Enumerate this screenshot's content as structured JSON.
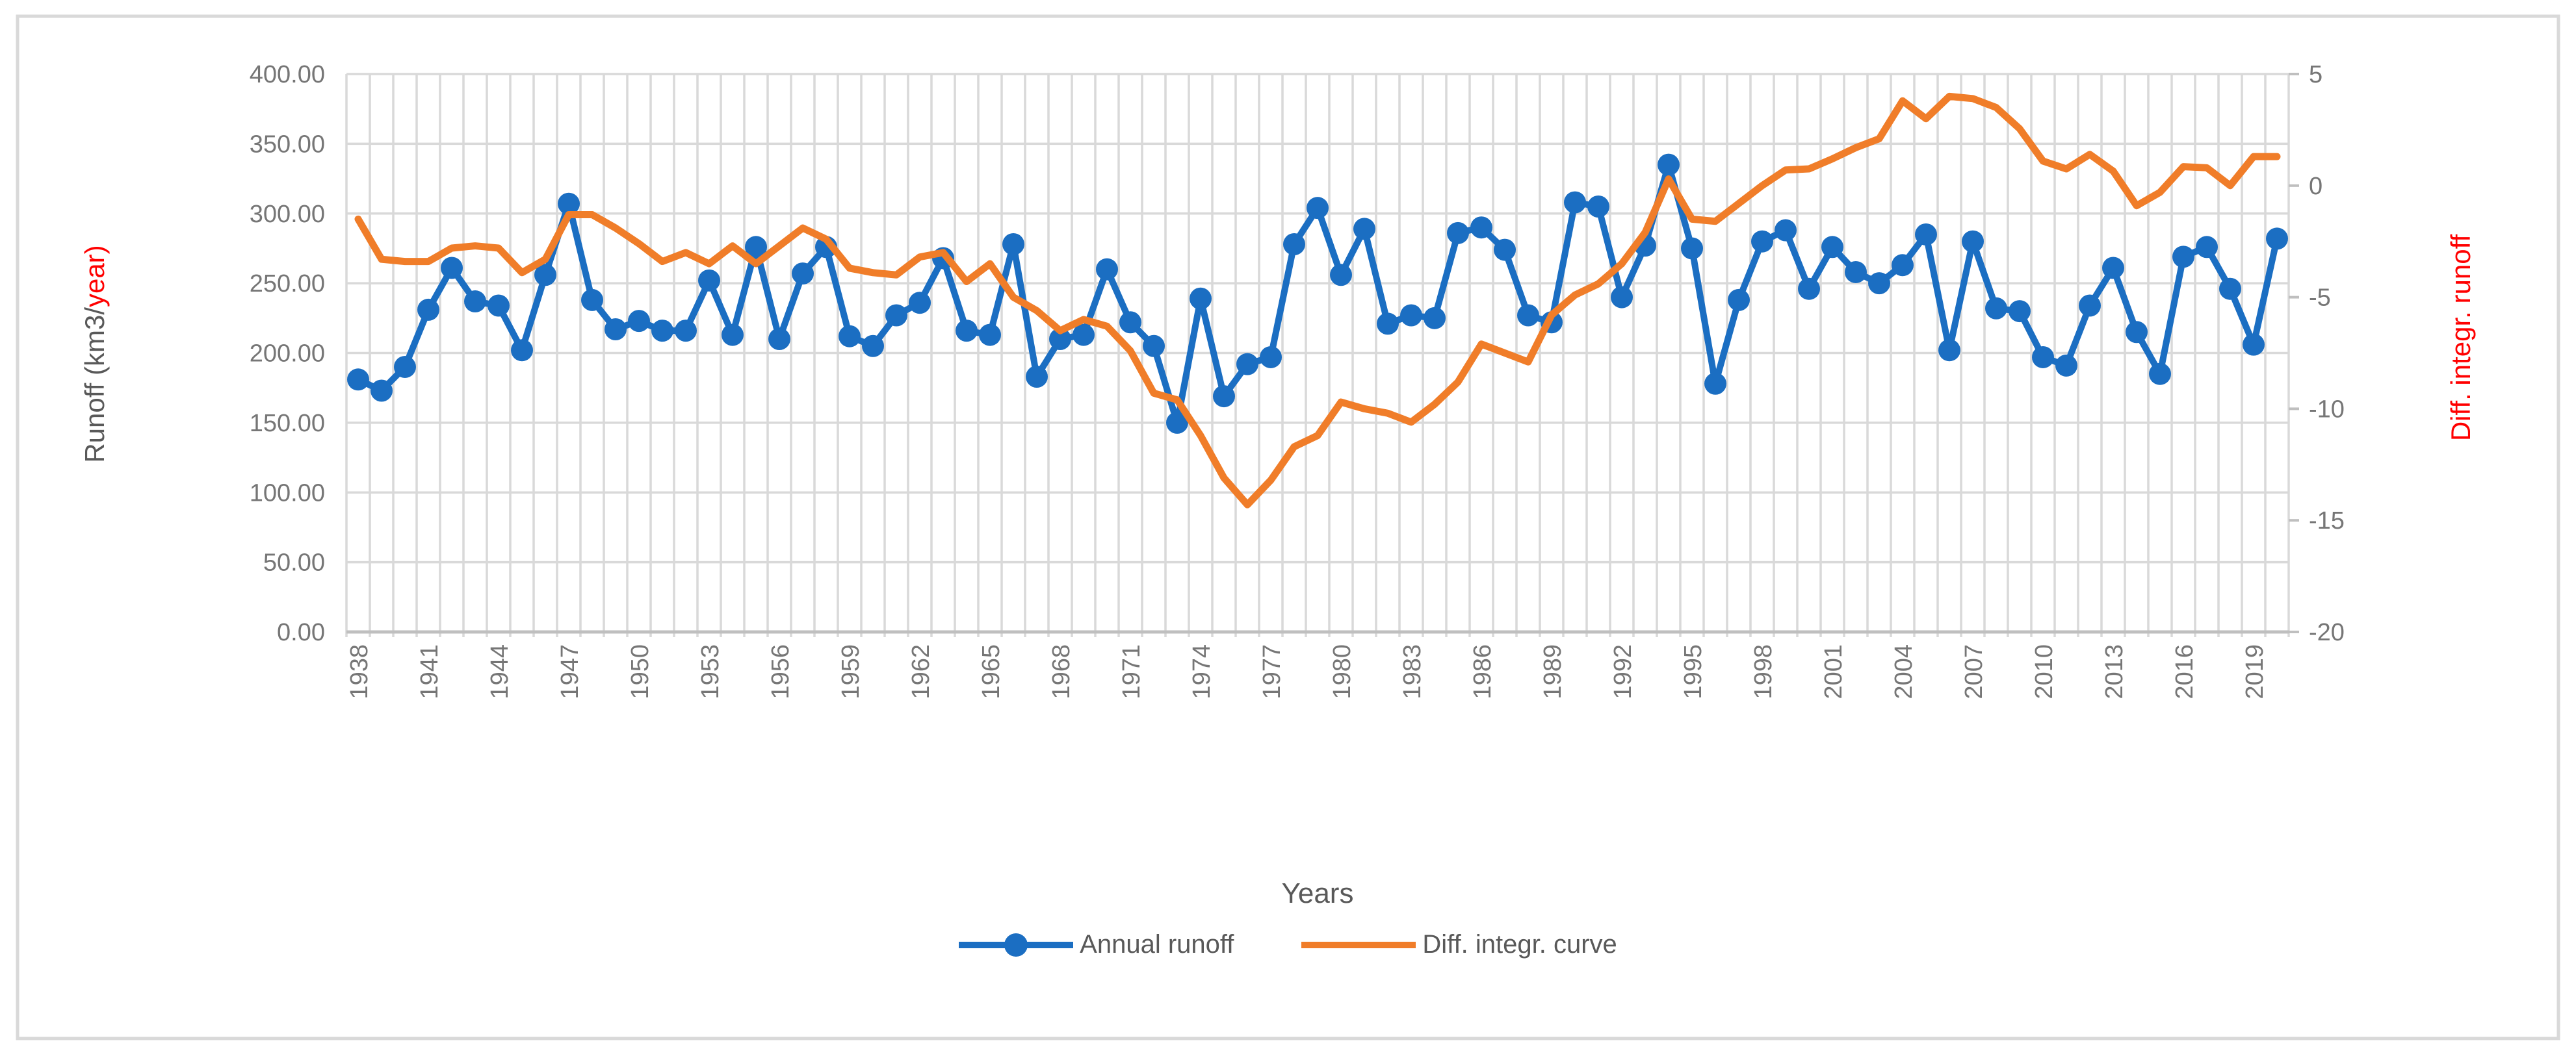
{
  "chart_data": {
    "type": "line",
    "title": "",
    "xlabel": "Years",
    "x": [
      1938,
      1939,
      1940,
      1941,
      1942,
      1943,
      1944,
      1945,
      1946,
      1947,
      1948,
      1949,
      1950,
      1951,
      1952,
      1953,
      1954,
      1955,
      1956,
      1957,
      1958,
      1959,
      1960,
      1961,
      1962,
      1963,
      1964,
      1965,
      1966,
      1967,
      1968,
      1969,
      1970,
      1971,
      1972,
      1973,
      1974,
      1975,
      1976,
      1977,
      1978,
      1979,
      1980,
      1981,
      1982,
      1983,
      1984,
      1985,
      1986,
      1987,
      1988,
      1989,
      1990,
      1991,
      1992,
      1993,
      1994,
      1995,
      1996,
      1997,
      1998,
      1999,
      2000,
      2001,
      2002,
      2003,
      2004,
      2005,
      2006,
      2007,
      2008,
      2009,
      2010,
      2011,
      2012,
      2013,
      2014,
      2015,
      2016,
      2017,
      2018,
      2019,
      2020
    ],
    "x_tick_labels": [
      "1938",
      "1941",
      "1944",
      "1947",
      "1950",
      "1953",
      "1956",
      "1959",
      "1962",
      "1965",
      "1968",
      "1971",
      "1974",
      "1977",
      "1980",
      "1983",
      "1986",
      "1989",
      "1992",
      "1995",
      "1998",
      "2001",
      "2004",
      "2007",
      "2010",
      "2013",
      "2016",
      "2019"
    ],
    "left_axis": {
      "title_gray": "Runoff (km3/",
      "title_red": "year)",
      "tick_labels": [
        "400.00",
        "350.00",
        "300.00",
        "250.00",
        "200.00",
        "150.00",
        "100.00",
        "50.00",
        "0.00"
      ],
      "min": 0,
      "max": 400
    },
    "right_axis": {
      "title": "Diff. integr. runoff",
      "tick_labels": [
        "5",
        "0",
        "-5",
        "-10",
        "-15",
        "-20"
      ],
      "min": -20,
      "max": 5
    },
    "grid": "both",
    "legend_position": "bottom",
    "series": [
      {
        "name": "Annual runoff",
        "axis": "left",
        "color": "#1B6EC2",
        "marker": "circle",
        "values": [
          181,
          173,
          190,
          231,
          261,
          237,
          234,
          202,
          256,
          307,
          238,
          217,
          223,
          216,
          216,
          252,
          213,
          276,
          210,
          257,
          276,
          212,
          205,
          227,
          236,
          268,
          216,
          213,
          278,
          183,
          210,
          213,
          260,
          222,
          205,
          150,
          239,
          169,
          192,
          197,
          278,
          304,
          256,
          289,
          221,
          227,
          225,
          286,
          290,
          274,
          227,
          222,
          308,
          305,
          240,
          277,
          335,
          275,
          178,
          238,
          280,
          288,
          246,
          276,
          258,
          250,
          263,
          285,
          202,
          280,
          232,
          230,
          197,
          191,
          234,
          261,
          215,
          185,
          269,
          276,
          246,
          206,
          282
        ]
      },
      {
        "name": "Diff. integr. curve",
        "axis": "right",
        "color": "#F07D29",
        "marker": "none",
        "values": [
          -1.5,
          -3.3,
          -3.4,
          -3.4,
          -2.8,
          -2.7,
          -2.8,
          -3.9,
          -3.3,
          -1.3,
          -1.3,
          -1.9,
          -2.6,
          -3.4,
          -3.0,
          -3.5,
          -2.7,
          -3.5,
          -2.7,
          -1.9,
          -2.4,
          -3.7,
          -3.9,
          -4.0,
          -3.2,
          -3.0,
          -4.3,
          -3.5,
          -5.0,
          -5.6,
          -6.5,
          -6.0,
          -6.3,
          -7.4,
          -9.3,
          -9.6,
          -11.2,
          -13.1,
          -14.3,
          -13.2,
          -11.7,
          -11.2,
          -9.7,
          -10.0,
          -10.2,
          -10.6,
          -9.8,
          -8.8,
          -7.1,
          -7.5,
          -7.9,
          -5.8,
          -4.9,
          -4.4,
          -3.5,
          -2.1,
          0.3,
          -1.5,
          -1.6,
          -0.8,
          0.0,
          0.7,
          0.75,
          1.2,
          1.7,
          2.1,
          3.8,
          3.0,
          4.0,
          3.9,
          3.5,
          2.55,
          1.1,
          0.75,
          1.4,
          0.65,
          -0.9,
          -0.3,
          0.85,
          0.8,
          0.0,
          1.3,
          1.3
        ]
      }
    ],
    "colors": {
      "gridline": "#D9D9D9",
      "axis_line": "#BFBFBF",
      "tick_label": "#767676",
      "axis_title_gray": "#595959",
      "axis_title_red": "#FF0000",
      "frame_border": "#D9D9D9",
      "background": "#FFFFFF"
    }
  }
}
